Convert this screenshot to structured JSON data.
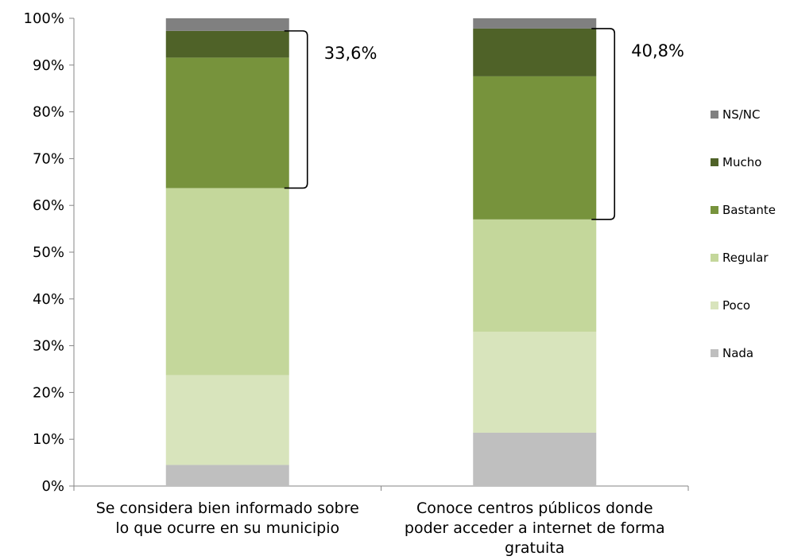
{
  "chart_data": {
    "type": "bar",
    "stacked": true,
    "percent_stacked": true,
    "title": "",
    "xlabel": "",
    "ylabel": "",
    "ylim": [
      0,
      100
    ],
    "y_ticks": [
      "0%",
      "10%",
      "20%",
      "30%",
      "40%",
      "50%",
      "60%",
      "70%",
      "80%",
      "90%",
      "100%"
    ],
    "grid": false,
    "legend_position": "right",
    "categories": [
      [
        "Se considera bien informado sobre",
        "lo que ocurre en su municipio"
      ],
      [
        "Conoce centros públicos donde",
        "poder acceder a internet de forma",
        "gratuita"
      ]
    ],
    "series": [
      {
        "name": "Nada",
        "color": "#bfbfbf",
        "values": [
          4.5,
          11.4
        ]
      },
      {
        "name": "Poco",
        "color": "#d8e4bc",
        "values": [
          19.2,
          21.6
        ]
      },
      {
        "name": "Regular",
        "color": "#c4d79b",
        "values": [
          40.0,
          24.0
        ]
      },
      {
        "name": "Bastante",
        "color": "#77933c",
        "values": [
          27.9,
          30.6
        ]
      },
      {
        "name": "Mucho",
        "color": "#4f6228",
        "values": [
          5.7,
          10.2
        ]
      },
      {
        "name": "NS/NC",
        "color": "#808080",
        "values": [
          2.7,
          2.2
        ]
      }
    ],
    "annotations": [
      {
        "category_index": 0,
        "text": "33,6%",
        "from": 63.7,
        "to": 97.3
      },
      {
        "category_index": 1,
        "text": "40,8%",
        "from": 57.0,
        "to": 97.8
      }
    ]
  }
}
